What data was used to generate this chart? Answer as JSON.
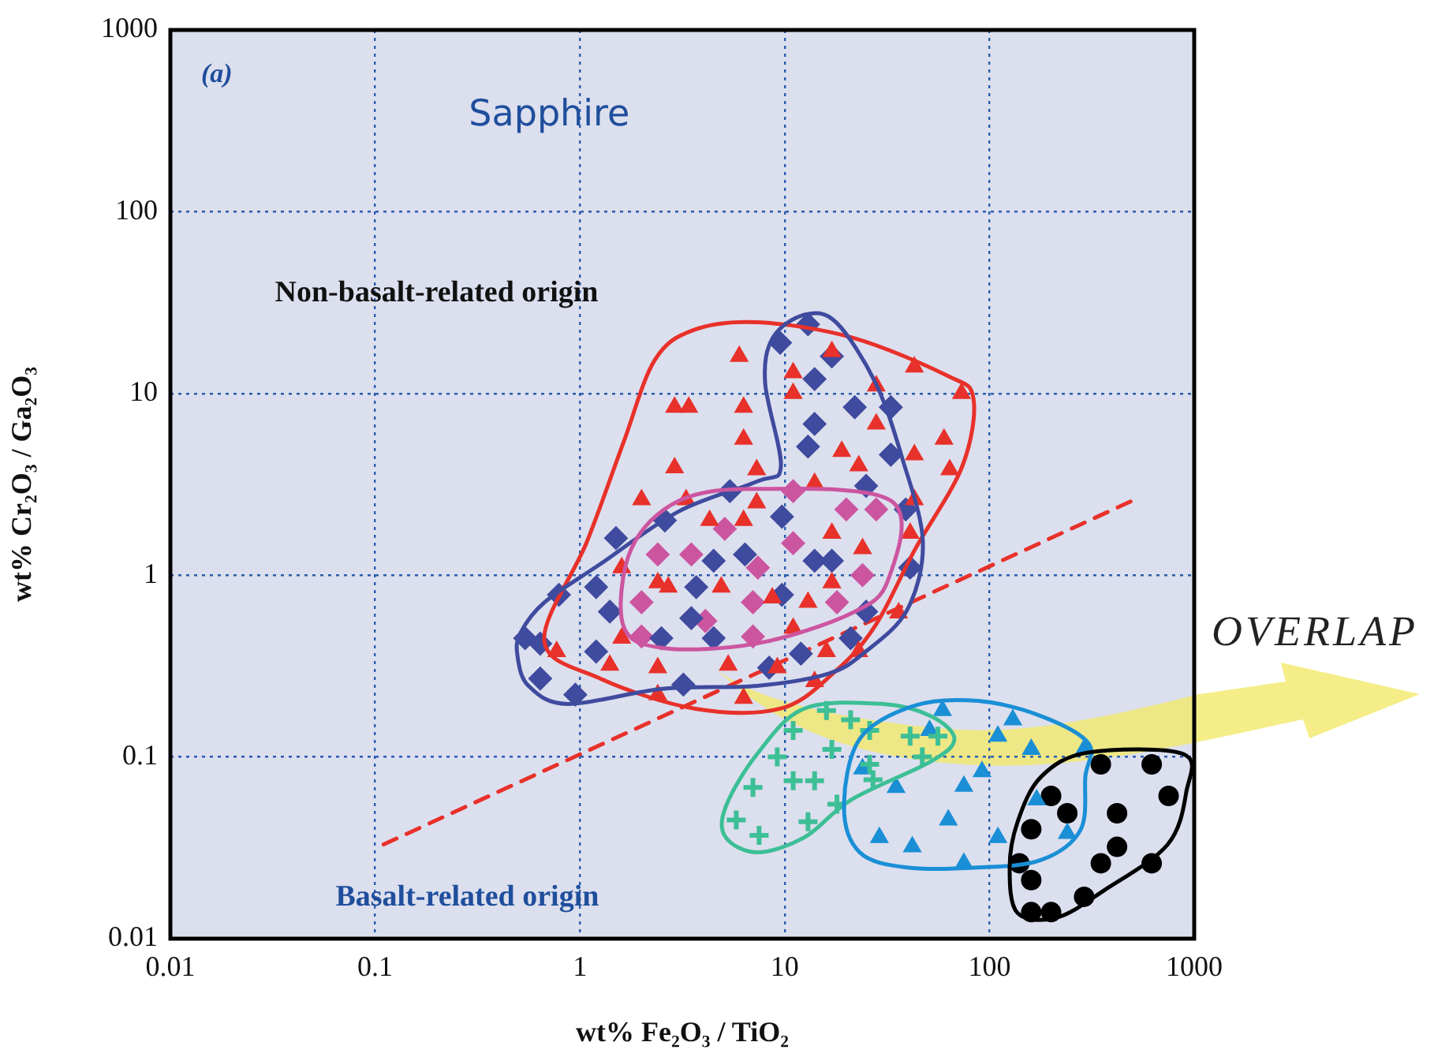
{
  "chart_data": {
    "type": "scatter",
    "xlabel": "wt% Fe₂O₃ / TiO₂",
    "ylabel": "wt% Cr₂O₃ / Ga₂O₃",
    "log": "xy",
    "grid": true,
    "xlim": [
      0.01,
      1000
    ],
    "ylim": [
      0.01,
      1000
    ],
    "xticks": [
      0.01,
      0.1,
      1,
      10,
      100,
      1000
    ],
    "yticks": [
      0.01,
      0.1,
      1,
      10,
      100,
      1000
    ],
    "annotations": [
      "(a)",
      "Sapphire",
      "Non-basalt-related origin",
      "Basalt-related origin",
      "OVERLAP"
    ],
    "series": [
      {
        "type": "line",
        "color": "#e8312a",
        "marker": "none",
        "line_style": "dashed",
        "x": [
          0.11,
          510
        ],
        "values": [
          0.033,
          2.6
        ]
      },
      {
        "type": "scatter",
        "color": "#e8312a",
        "marker": "triangle",
        "x": [
          6.0,
          2.9,
          3.4,
          6.3,
          6.3,
          2.9,
          2.0,
          3.3,
          4.3,
          6.3,
          1.6,
          2.4,
          2.7,
          4.9,
          1.6,
          0.77,
          1.4,
          2.4,
          5.3,
          2.4,
          6.3,
          17,
          11,
          11,
          43,
          28,
          73,
          28,
          60,
          19,
          43,
          23,
          7.3,
          14,
          64,
          43,
          7.3,
          41,
          17,
          24,
          17,
          8.7,
          13,
          36,
          11,
          16,
          23,
          9.2,
          14
        ],
        "values": [
          16,
          8.4,
          8.4,
          8.4,
          5.6,
          3.9,
          2.6,
          2.6,
          2.0,
          2.0,
          1.1,
          0.91,
          0.86,
          0.86,
          0.45,
          0.38,
          0.32,
          0.31,
          0.32,
          0.22,
          0.21,
          17,
          13,
          10,
          14,
          11,
          10,
          6.8,
          5.6,
          4.8,
          4.6,
          4.0,
          3.8,
          3.2,
          3.8,
          2.6,
          2.5,
          1.7,
          1.7,
          1.4,
          0.91,
          0.75,
          0.71,
          0.62,
          0.51,
          0.38,
          0.38,
          0.31,
          0.26
        ]
      },
      {
        "type": "scatter",
        "color": "#3f4b9e",
        "marker": "diamond",
        "x": [
          5.4,
          2.6,
          1.5,
          6.4,
          4.5,
          0.79,
          1.2,
          3.7,
          1.4,
          3.5,
          0.54,
          0.64,
          2.5,
          4.5,
          1.2,
          0.64,
          0.95,
          3.2,
          13,
          9.5,
          17,
          14,
          22,
          33,
          14,
          13,
          33,
          25,
          39,
          9.7,
          14,
          17,
          41,
          9.7,
          25,
          21,
          12,
          8.4
        ],
        "values": [
          2.9,
          2.0,
          1.6,
          1.3,
          1.2,
          0.78,
          0.86,
          0.86,
          0.63,
          0.58,
          0.45,
          0.42,
          0.45,
          0.45,
          0.38,
          0.27,
          0.22,
          0.25,
          24,
          19,
          16,
          12,
          8.4,
          8.4,
          6.8,
          5.1,
          4.6,
          3.1,
          2.3,
          2.1,
          1.2,
          1.2,
          1.1,
          0.78,
          0.63,
          0.45,
          0.37,
          0.31
        ]
      },
      {
        "type": "scatter",
        "color": "#cc55a0",
        "marker": "diamond",
        "x": [
          5.1,
          2.4,
          3.5,
          2.0,
          2.0,
          4.1,
          11,
          20,
          28,
          11,
          7.4,
          24,
          7.0,
          18,
          7.0
        ],
        "values": [
          1.8,
          1.3,
          1.3,
          0.71,
          0.46,
          0.56,
          2.9,
          2.3,
          2.3,
          1.5,
          1.1,
          1.0,
          0.71,
          0.71,
          0.46
        ]
      },
      {
        "type": "scatter",
        "color": "#3dbf96",
        "marker": "cross",
        "x": [
          16,
          11,
          21,
          26,
          41,
          56,
          17,
          9.2,
          47,
          26,
          7.0,
          11,
          14,
          27,
          18,
          5.8,
          13,
          7.5
        ],
        "values": [
          0.18,
          0.14,
          0.16,
          0.14,
          0.13,
          0.13,
          0.11,
          0.1,
          0.1,
          0.091,
          0.068,
          0.074,
          0.074,
          0.075,
          0.055,
          0.045,
          0.044,
          0.037
        ]
      },
      {
        "type": "scatter",
        "color": "#1a8fd6",
        "marker": "triangle",
        "x": [
          59,
          51,
          24,
          35,
          75,
          63,
          29,
          42,
          75,
          130,
          110,
          160,
          290,
          92,
          170,
          240,
          110
        ],
        "values": [
          0.18,
          0.14,
          0.086,
          0.068,
          0.069,
          0.045,
          0.036,
          0.032,
          0.026,
          0.16,
          0.13,
          0.11,
          0.11,
          0.083,
          0.058,
          0.038,
          0.036
        ]
      },
      {
        "type": "scatter",
        "color": "#000000",
        "marker": "circle",
        "x": [
          350,
          620,
          200,
          750,
          240,
          420,
          160,
          420,
          350,
          620,
          140,
          160,
          290,
          160,
          200
        ],
        "values": [
          0.091,
          0.091,
          0.061,
          0.061,
          0.049,
          0.049,
          0.04,
          0.032,
          0.026,
          0.026,
          0.026,
          0.021,
          0.017,
          0.014,
          0.014
        ]
      }
    ]
  }
}
